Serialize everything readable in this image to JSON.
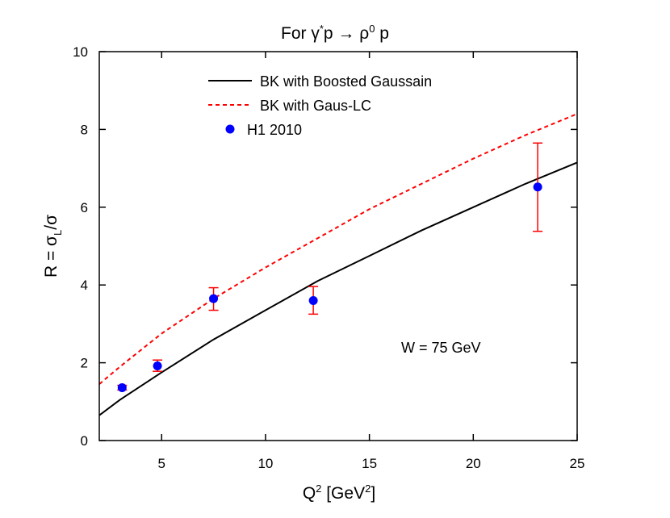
{
  "chart_data": {
    "type": "line",
    "title": {
      "pre": "For γ",
      "sup1": "*",
      "mid": "p → ρ",
      "sup2": "0",
      "post": " p"
    },
    "xlabel": {
      "pre": "Q",
      "sup1": "2",
      "mid": " [GeV",
      "sup2": "2",
      "post": "]"
    },
    "ylabel": {
      "pre": "R = σ",
      "sub": "L",
      "post": "/σ"
    },
    "xlim": [
      2,
      25
    ],
    "ylim": [
      0,
      10
    ],
    "xticks": [
      5,
      10,
      15,
      20,
      25
    ],
    "yticks": [
      0,
      2,
      4,
      6,
      8,
      10
    ],
    "legend_position": "top-left",
    "annotation": "W = 75 GeV",
    "series": [
      {
        "name": "BK with Boosted Gaussain",
        "kind": "line",
        "color": "#000000",
        "dash": "solid",
        "x": [
          2,
          3,
          5,
          7.5,
          10,
          12.5,
          15,
          17.5,
          20,
          22.5,
          25
        ],
        "y": [
          0.65,
          1.05,
          1.75,
          2.6,
          3.35,
          4.1,
          4.75,
          5.4,
          6.0,
          6.6,
          7.15
        ]
      },
      {
        "name": "BK with Gaus-LC",
        "kind": "line",
        "color": "#ff0000",
        "dash": "dashed",
        "x": [
          2,
          3,
          5,
          7.5,
          10,
          12.5,
          15,
          17.5,
          20,
          22.5,
          25
        ],
        "y": [
          1.45,
          1.9,
          2.75,
          3.65,
          4.45,
          5.2,
          5.95,
          6.6,
          7.25,
          7.85,
          8.4
        ]
      },
      {
        "name": "H1 2010",
        "kind": "points",
        "color": "#0000ff",
        "error_color": "#ff0000",
        "x": [
          3.1,
          4.8,
          7.5,
          12.3,
          23.1
        ],
        "y": [
          1.36,
          1.92,
          3.65,
          3.6,
          6.52
        ],
        "err_low": [
          1.3,
          1.78,
          3.35,
          3.25,
          5.38
        ],
        "err_high": [
          1.42,
          2.07,
          3.93,
          3.96,
          7.65
        ]
      }
    ]
  }
}
